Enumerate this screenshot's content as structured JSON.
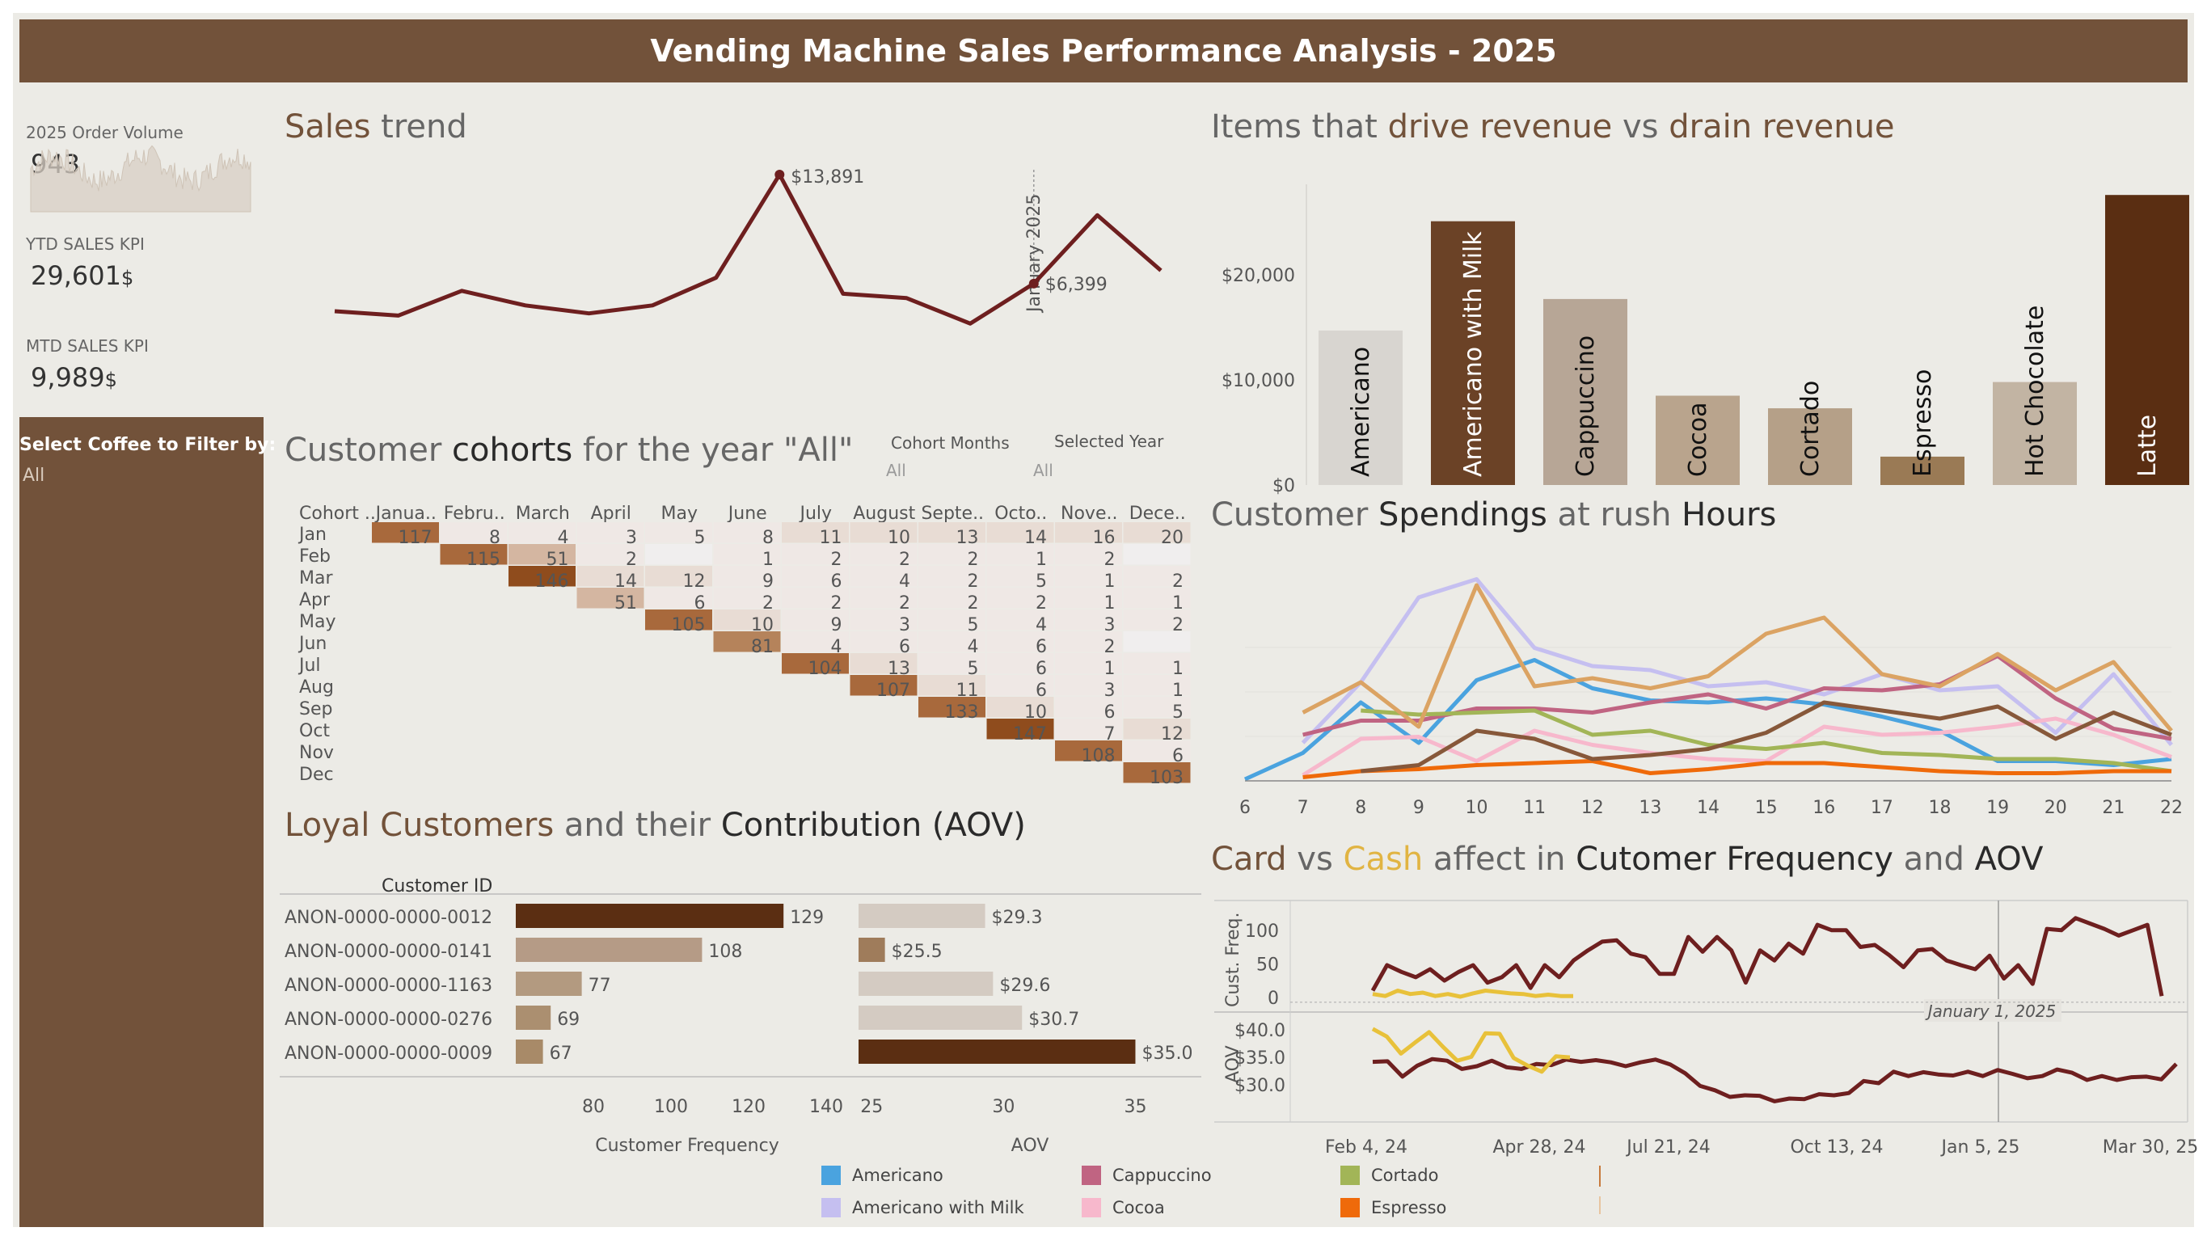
{
  "header": {
    "title": "Vending Machine Sales Performance Analysis - 2025"
  },
  "kpis": {
    "order_volume_label": "2025 Order Volume",
    "order_volume_value": "943",
    "ytd_label": "YTD SALES KPI",
    "ytd_value": "29,601",
    "mtd_label": "MTD SALES KPI",
    "mtd_value": "9,989",
    "currency": "$"
  },
  "filter": {
    "label": "Select Coffee to Filter by:",
    "value": "All"
  },
  "sales_trend": {
    "title_a": "Sales",
    "title_b": " trend",
    "peak_label": "$13,891",
    "last_label": "$6,399",
    "ref_label": "January 2025",
    "values": [
      4500,
      4200,
      5900,
      4900,
      4350,
      4900,
      6800,
      13891,
      5700,
      5400,
      3650,
      6399,
      11100,
      7300
    ]
  },
  "items": {
    "title_a": "Items that ",
    "title_b": "drive revenue",
    "title_c": " vs ",
    "title_d": "drain revenue",
    "y_ticks": [
      "$0",
      "$10,000",
      "$20,000"
    ],
    "chart_data": {
      "type": "bar",
      "categories": [
        "Americano",
        "Americano with Milk",
        "Cappuccino",
        "Cocoa",
        "Cortado",
        "Espresso",
        "Hot Chocolate",
        "Latte"
      ],
      "values": [
        14700,
        25100,
        17700,
        8500,
        7300,
        2700,
        9800,
        27600
      ],
      "colors": [
        "#d8d5d0",
        "#6b4226",
        "#b7a696",
        "#b9a48d",
        "#b5a088",
        "#9a7a55",
        "#c2b4a3",
        "#5a2e12"
      ],
      "ylim": [
        0,
        28000
      ]
    }
  },
  "cohorts": {
    "title_a": "Customer ",
    "title_b": "cohorts",
    "title_c": " for the year \"All\"",
    "cohort_months_label": "Cohort Months",
    "cohort_months_value": "All",
    "selected_year_label": "Selected Year",
    "selected_year_value": "All",
    "corner_header": "Cohort ..",
    "col_headers": [
      "Janua..",
      "Febru..",
      "March",
      "April",
      "May",
      "June",
      "July",
      "August",
      "Septe..",
      "Octo..",
      "Nove..",
      "Dece.."
    ],
    "rows": [
      {
        "label": "Jan",
        "cells": [
          "117",
          "8",
          "4",
          "3",
          "5",
          "8",
          "11",
          "10",
          "13",
          "14",
          "16",
          "20"
        ]
      },
      {
        "label": "Feb",
        "cells": [
          "",
          "115",
          "51",
          "2",
          "",
          "1",
          "2",
          "2",
          "2",
          "1",
          "2",
          ""
        ]
      },
      {
        "label": "Mar",
        "cells": [
          "",
          "",
          "146",
          "14",
          "12",
          "9",
          "6",
          "4",
          "2",
          "5",
          "1",
          "2"
        ]
      },
      {
        "label": "Apr",
        "cells": [
          "",
          "",
          "",
          "51",
          "6",
          "2",
          "2",
          "2",
          "2",
          "2",
          "1",
          "1"
        ]
      },
      {
        "label": "May",
        "cells": [
          "",
          "",
          "",
          "",
          "105",
          "10",
          "9",
          "3",
          "5",
          "4",
          "3",
          "2"
        ]
      },
      {
        "label": "Jun",
        "cells": [
          "",
          "",
          "",
          "",
          "",
          "81",
          "4",
          "6",
          "4",
          "6",
          "2",
          ""
        ]
      },
      {
        "label": "Jul",
        "cells": [
          "",
          "",
          "",
          "",
          "",
          "",
          "104",
          "13",
          "5",
          "6",
          "1",
          "1"
        ]
      },
      {
        "label": "Aug",
        "cells": [
          "",
          "",
          "",
          "",
          "",
          "",
          "",
          "107",
          "11",
          "6",
          "3",
          "1"
        ]
      },
      {
        "label": "Sep",
        "cells": [
          "",
          "",
          "",
          "",
          "",
          "",
          "",
          "",
          "133",
          "10",
          "6",
          "5"
        ]
      },
      {
        "label": "Oct",
        "cells": [
          "",
          "",
          "",
          "",
          "",
          "",
          "",
          "",
          "",
          "147",
          "7",
          "12"
        ]
      },
      {
        "label": "Nov",
        "cells": [
          "",
          "",
          "",
          "",
          "",
          "",
          "",
          "",
          "",
          "",
          "108",
          "6"
        ]
      },
      {
        "label": "Dec",
        "cells": [
          "",
          "",
          "",
          "",
          "",
          "",
          "",
          "",
          "",
          "",
          "",
          "103"
        ]
      }
    ]
  },
  "rush": {
    "title_a": "Customer ",
    "title_b": "Spendings",
    "title_c": " at rush ",
    "title_d": "Hours",
    "chart_data": {
      "type": "line",
      "x": [
        6,
        7,
        8,
        9,
        10,
        11,
        12,
        13,
        14,
        15,
        16,
        17,
        18,
        19,
        20,
        21,
        22
      ],
      "ylim": [
        0,
        1000
      ],
      "series": [
        {
          "name": "Americano",
          "color": "#4aa3df",
          "values": [
            0,
            130,
            380,
            180,
            490,
            590,
            450,
            390,
            380,
            400,
            370,
            310,
            240,
            90,
            90,
            70,
            100
          ]
        },
        {
          "name": "Americano with Milk",
          "color": "#c5bff0",
          "values": [
            null,
            180,
            480,
            900,
            990,
            650,
            560,
            540,
            460,
            480,
            420,
            520,
            440,
            460,
            230,
            520,
            170
          ]
        },
        {
          "name": "Cappuccino",
          "color": "#c06482",
          "values": [
            null,
            220,
            290,
            290,
            350,
            350,
            330,
            380,
            420,
            350,
            450,
            440,
            470,
            610,
            400,
            250,
            200
          ]
        },
        {
          "name": "Cocoa",
          "color": "#f7b8cc",
          "values": [
            null,
            20,
            200,
            210,
            90,
            240,
            170,
            130,
            100,
            90,
            260,
            220,
            230,
            260,
            300,
            220,
            110
          ]
        },
        {
          "name": "Cortado",
          "color": "#a2b557",
          "values": [
            null,
            null,
            340,
            320,
            330,
            340,
            220,
            240,
            170,
            150,
            180,
            130,
            120,
            100,
            100,
            80,
            40
          ]
        },
        {
          "name": "Espresso",
          "color": "#ef6a0a",
          "values": [
            null,
            10,
            40,
            50,
            70,
            80,
            90,
            30,
            50,
            80,
            80,
            60,
            40,
            30,
            30,
            40,
            40
          ]
        },
        {
          "name": "Hot Chocolate",
          "color": "#87583a",
          "values": [
            null,
            null,
            40,
            70,
            240,
            200,
            100,
            120,
            150,
            230,
            380,
            340,
            300,
            360,
            200,
            330,
            220
          ]
        },
        {
          "name": "Latte",
          "color": "#dba363",
          "values": [
            null,
            330,
            480,
            260,
            960,
            460,
            500,
            450,
            510,
            720,
            800,
            520,
            460,
            620,
            440,
            580,
            240
          ]
        }
      ]
    }
  },
  "loyal": {
    "title_a": "Loyal Customers",
    "title_b": " and their ",
    "title_c": "Contribution (AOV)",
    "col_header": "Customer ID",
    "x1_label": "Customer Frequency",
    "x2_label": "AOV",
    "x1_ticks": [
      "80",
      "100",
      "120",
      "140"
    ],
    "x2_ticks": [
      "25",
      "30",
      "35"
    ],
    "chart_data": {
      "type": "bar",
      "customers": [
        "ANON-0000-0000-0012",
        "ANON-0000-0000-0141",
        "ANON-0000-0000-1163",
        "ANON-0000-0000-0276",
        "ANON-0000-0000-0009"
      ],
      "frequency": [
        129,
        108,
        77,
        69,
        67
      ],
      "frequency_labels": [
        "129",
        "108",
        "77",
        "69",
        "67"
      ],
      "freq_colors": [
        "#5b2e12",
        "#b59b86",
        "#b39a80",
        "#ab8f70",
        "#a88a68"
      ],
      "aov": [
        29.3,
        25.5,
        29.6,
        30.7,
        35.0
      ],
      "aov_labels": [
        "$29.3",
        "$25.5",
        "$29.6",
        "$30.7",
        "$35.0"
      ],
      "aov_colors": [
        "#d4cbc2",
        "#9f7c5b",
        "#d4cbc2",
        "#d4cbc2",
        "#5b2e12"
      ],
      "freq_xlim": [
        60,
        145
      ],
      "aov_xlim": [
        24.5,
        37.5
      ]
    }
  },
  "cardcash": {
    "title_a": "Card",
    "title_b": " vs ",
    "title_c": "Cash",
    "title_d": " affect in ",
    "title_e": "Cutomer Frequency",
    "title_f": " and ",
    "title_g": "AOV",
    "y1_label": "Cust. Freq.",
    "y2_label": "AOV",
    "y1_ticks": [
      "0",
      "50",
      "100"
    ],
    "y2_ticks": [
      "$30.0",
      "$35.0",
      "$40.0"
    ],
    "x_ticks": [
      "Feb 4, 24",
      "Apr 28, 24",
      "Jul 21, 24",
      "Oct 13, 24",
      "Jan 5, 25",
      "Mar 30, 25"
    ],
    "ref_label": "January 1, 2025",
    "chart_data": {
      "type": "line",
      "card_freq": [
        10,
        48,
        38,
        30,
        42,
        25,
        38,
        48,
        22,
        30,
        48,
        14,
        48,
        30,
        55,
        70,
        83,
        85,
        65,
        60,
        35,
        35,
        90,
        68,
        90,
        70,
        22,
        70,
        55,
        80,
        65,
        108,
        100,
        100,
        75,
        78,
        63,
        45,
        70,
        72,
        55,
        48,
        42,
        62,
        28,
        48,
        20,
        102,
        100,
        118,
        110,
        102,
        92,
        100,
        108,
        2
      ],
      "cash_freq": [
        5,
        2,
        10,
        5,
        7,
        2,
        5,
        1,
        6,
        10,
        8,
        6,
        5,
        2,
        4,
        2,
        2
      ],
      "card_aov": [
        34.2,
        34.3,
        31.5,
        33.5,
        34.7,
        34.4,
        32.9,
        33.4,
        34.4,
        33.2,
        32.9,
        33.8,
        33.6,
        34.6,
        34.2,
        34.5,
        34.1,
        33.4,
        34.1,
        34.6,
        33.7,
        32.1,
        29.8,
        29.0,
        27.8,
        28.1,
        28.0,
        27.0,
        27.5,
        27.4,
        28.3,
        28.1,
        28.5,
        30.7,
        30.3,
        32.4,
        31.6,
        32.3,
        31.9,
        31.7,
        32.4,
        31.6,
        32.7,
        32.0,
        31.2,
        31.6,
        32.8,
        32.2,
        30.9,
        31.6,
        30.9,
        31.4,
        31.5,
        31.0,
        33.8
      ],
      "cash_aov": [
        40.2,
        38.8,
        35.7,
        37.7,
        39.6,
        36.9,
        34.4,
        35.1,
        39.4,
        39.3,
        34.9,
        33.5,
        32.4,
        35.2,
        35.0
      ],
      "y1lim": [
        -5,
        125
      ],
      "y2lim": [
        25.0,
        41.5
      ]
    }
  },
  "legend": {
    "items": [
      {
        "name": "Americano",
        "color": "#4aa3df"
      },
      {
        "name": "Cappuccino",
        "color": "#c06482"
      },
      {
        "name": "Cortado",
        "color": "#a2b557"
      },
      {
        "name": "Americano with Milk",
        "color": "#c5bff0"
      },
      {
        "name": "Cocoa",
        "color": "#f7b8cc"
      },
      {
        "name": "Espresso",
        "color": "#ef6a0a"
      }
    ]
  }
}
